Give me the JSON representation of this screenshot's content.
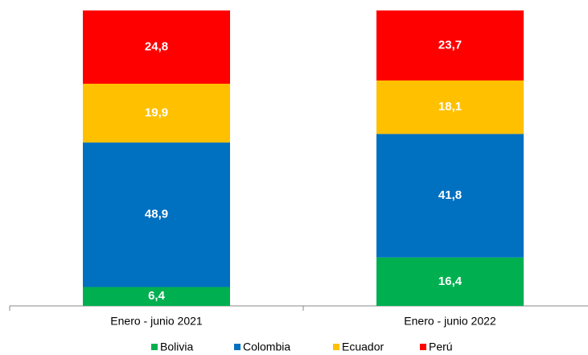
{
  "chart_data": {
    "type": "stacked_bar_100",
    "categories": [
      "Enero - junio 2021",
      "Enero - junio 2022"
    ],
    "series": [
      {
        "name": "Bolivia",
        "color": "#00b050",
        "values": [
          6.4,
          16.4
        ],
        "value_labels": [
          "6,4",
          "16,4"
        ]
      },
      {
        "name": "Colombia",
        "color": "#0070c0",
        "values": [
          48.9,
          41.8
        ],
        "value_labels": [
          "48,9",
          "41,8"
        ]
      },
      {
        "name": "Ecuador",
        "color": "#ffc000",
        "values": [
          19.9,
          18.1
        ],
        "value_labels": [
          "19,9",
          "18,1"
        ]
      },
      {
        "name": "Perú",
        "color": "#ff0000",
        "values": [
          24.8,
          23.7
        ],
        "value_labels": [
          "24,8",
          "23,7"
        ]
      }
    ],
    "legend": "bottom"
  }
}
